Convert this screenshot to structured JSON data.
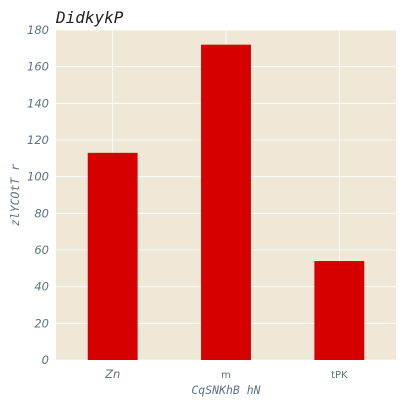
{
  "chart_data": {
    "type": "bar",
    "title": "DidkykP",
    "xlabel": "CqSNKhB  hN",
    "ylabel": "zlYCOtT r",
    "categories": [
      "Zn",
      "m",
      "tPK"
    ],
    "values": [
      113,
      172,
      54
    ],
    "ylim": [
      0,
      180
    ],
    "yticks": [
      0,
      20,
      40,
      60,
      80,
      100,
      120,
      140,
      160,
      180
    ],
    "grid": true,
    "colors": {
      "bar": "#d60000",
      "plot_background": "#efe8d6",
      "grid": "#ffffff"
    }
  }
}
